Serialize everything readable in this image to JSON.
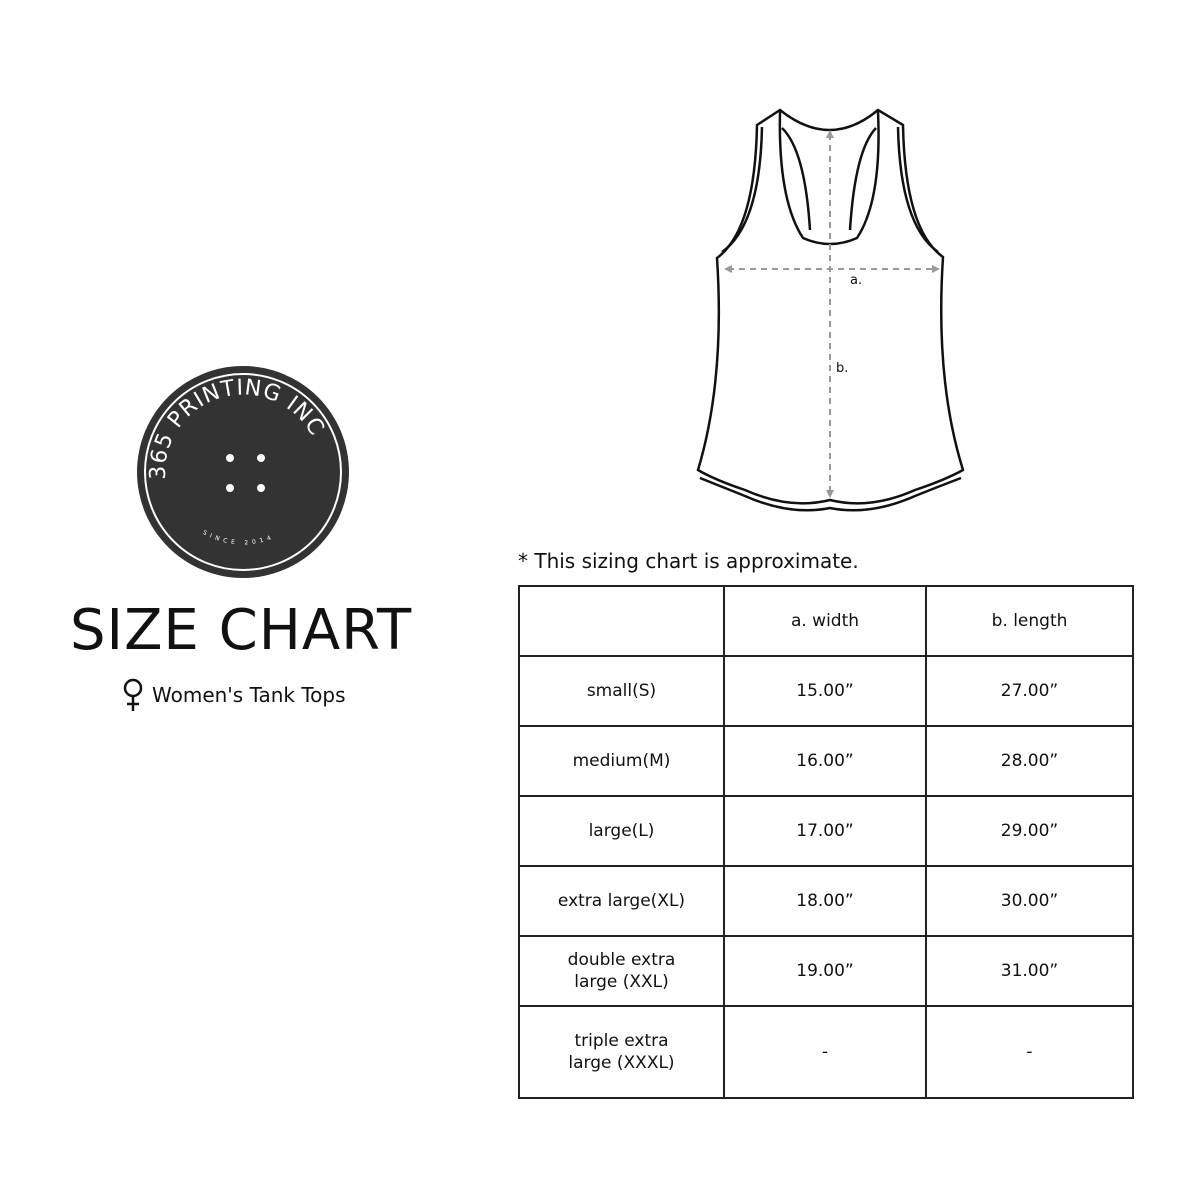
{
  "logo": {
    "brand": "365 PRINTING INC",
    "since": "SINCE 2014",
    "color": "#333333"
  },
  "title": "SIZE CHART",
  "subtitle": {
    "icon": "female-symbol-icon",
    "text": "Women's Tank Tops"
  },
  "diagram": {
    "label_a": "a.",
    "label_b": "b."
  },
  "note": "* This sizing chart is approximate.",
  "table": {
    "headers": [
      "",
      "a. width",
      "b. length"
    ],
    "rows": [
      [
        "small(S)",
        "15.00”",
        "27.00”"
      ],
      [
        "medium(M)",
        "16.00”",
        "28.00”"
      ],
      [
        "large(L)",
        "17.00”",
        "29.00”"
      ],
      [
        "extra large(XL)",
        "18.00”",
        "30.00”"
      ],
      [
        "double extra large (XXL)",
        "19.00”",
        "31.00”"
      ],
      [
        "triple extra large (XXXL)",
        "-",
        "-"
      ]
    ]
  }
}
